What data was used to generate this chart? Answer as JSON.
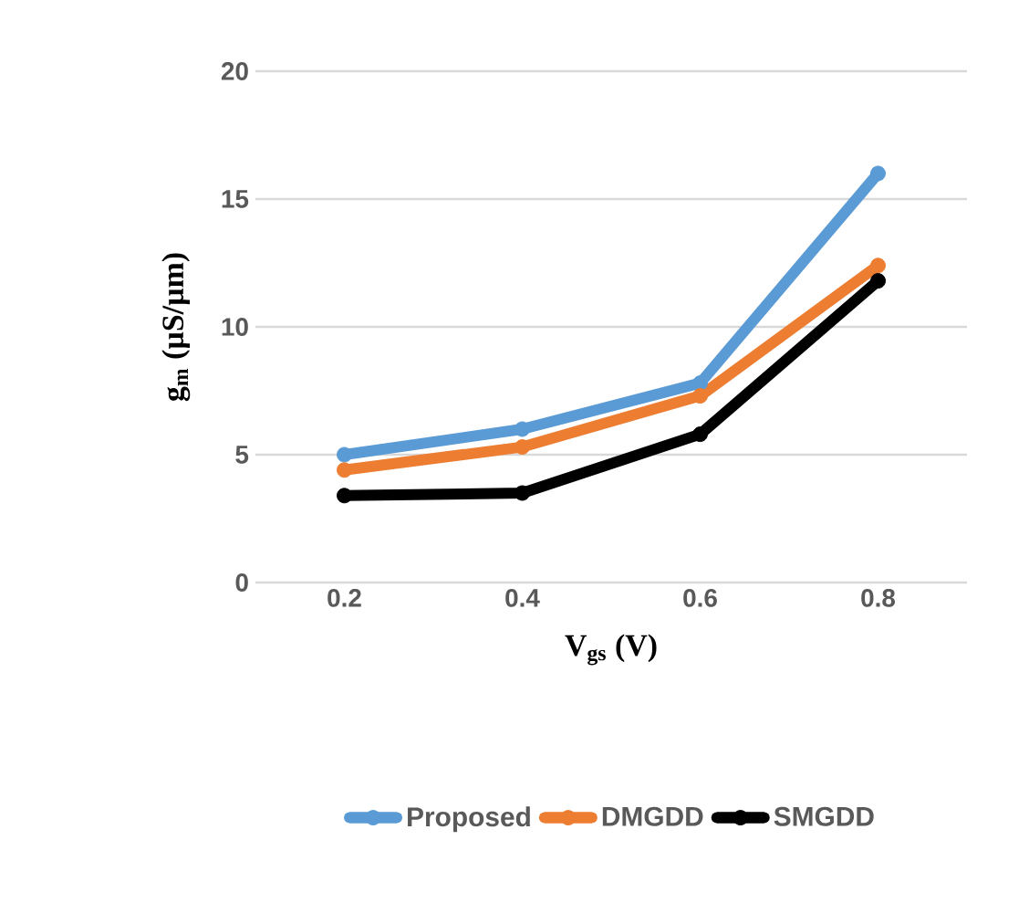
{
  "chart_data": {
    "type": "line",
    "xlabel": "V$_{gs}$ (V)",
    "ylabel": "g$_{m}$  (µS/µm)",
    "categories": [
      "0.2",
      "0.4",
      "0.6",
      "0.8"
    ],
    "series": [
      {
        "name": "Proposed",
        "color": "#5b9bd5",
        "values": [
          5.0,
          6.0,
          7.8,
          16.0
        ]
      },
      {
        "name": "DMGDD",
        "color": "#ed7d31",
        "values": [
          4.4,
          5.3,
          7.3,
          12.4
        ]
      },
      {
        "name": "SMGDD",
        "color": "#000000",
        "values": [
          3.4,
          3.5,
          5.8,
          11.8
        ]
      }
    ],
    "ylim": [
      0,
      20
    ],
    "yticks": [
      0,
      5,
      10,
      15,
      20
    ],
    "grid": "y",
    "legend": "bottom",
    "marker": "circle",
    "line_style": "solid"
  }
}
